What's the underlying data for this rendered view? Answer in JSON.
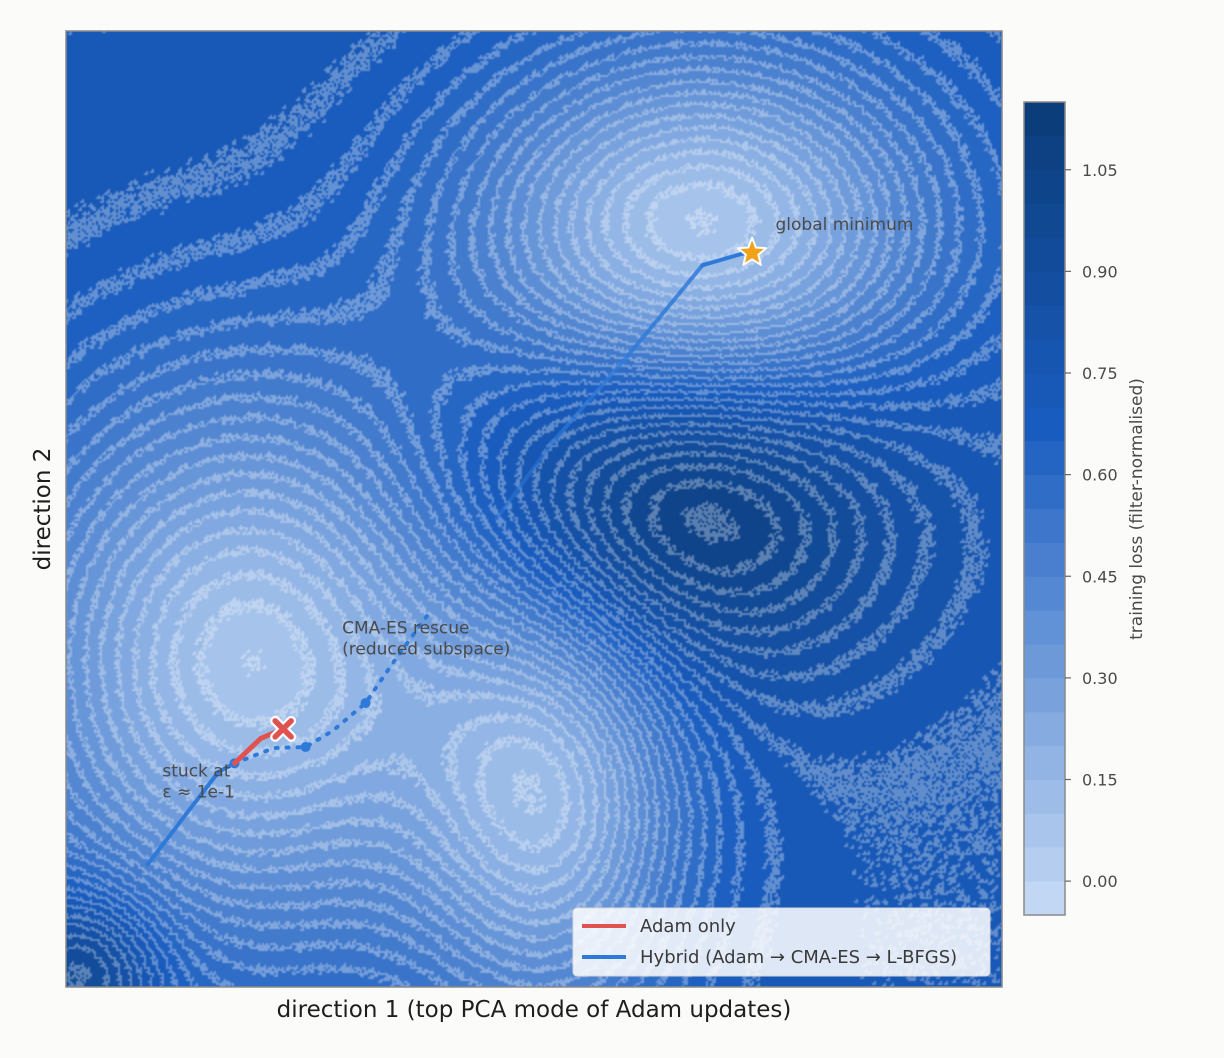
{
  "chart_data": {
    "type": "contour",
    "title": "",
    "xlabel": "direction 1  (top PCA mode of Adam updates)",
    "ylabel": "direction 2",
    "colorbar": {
      "label": "training loss  (filter-normalised)",
      "range": [
        -0.05,
        1.15
      ],
      "ticks": [
        "0.00",
        "0.15",
        "0.30",
        "0.45",
        "0.60",
        "0.75",
        "0.90",
        "1.05"
      ],
      "tick_values": [
        0.0,
        0.15,
        0.3,
        0.45,
        0.6,
        0.75,
        0.9,
        1.05
      ],
      "colormap": [
        "#c8dcf6",
        "#1a5dc0",
        "#0b3c78"
      ]
    },
    "surface": {
      "base_loss": 0.74,
      "basins": [
        {
          "cx": 0.68,
          "cy": 0.79,
          "sx": 0.17,
          "sy": 0.13,
          "depth": -0.68
        },
        {
          "cx": 0.2,
          "cy": 0.34,
          "sx": 0.18,
          "sy": 0.2,
          "depth": -0.66
        },
        {
          "cx": 0.52,
          "cy": 0.19,
          "sx": 0.1,
          "sy": 0.16,
          "depth": -0.52
        },
        {
          "cx": 0.65,
          "cy": 0.5,
          "sx": 0.16,
          "sy": 0.12,
          "depth": 0.4
        },
        {
          "cx": 0.02,
          "cy": 0.02,
          "sx": 0.06,
          "sy": 0.06,
          "depth": 0.3
        }
      ]
    },
    "series": [
      {
        "name": "Adam only",
        "color": "#e05250",
        "path": [
          [
            0.18,
            0.234
          ],
          [
            0.208,
            0.26
          ],
          [
            0.232,
            0.27
          ]
        ]
      },
      {
        "name": "Hybrid (Adam → CMA-ES → L-BFGS)",
        "color": "#2f7ad8",
        "adam_path": [
          [
            0.087,
            0.128
          ],
          [
            0.13,
            0.183
          ],
          [
            0.163,
            0.225
          ],
          [
            0.18,
            0.234
          ]
        ],
        "cmaes_path": [
          [
            0.18,
            0.234
          ],
          [
            0.222,
            0.25
          ],
          [
            0.256,
            0.251
          ],
          [
            0.285,
            0.268
          ],
          [
            0.32,
            0.297
          ],
          [
            0.35,
            0.34
          ],
          [
            0.387,
            0.39
          ]
        ],
        "cmaes_markers": [
          [
            0.18,
            0.234
          ],
          [
            0.256,
            0.251
          ],
          [
            0.32,
            0.297
          ]
        ],
        "lbfgs_path": [
          [
            0.46,
            0.49
          ],
          [
            0.52,
            0.57
          ],
          [
            0.6,
            0.66
          ],
          [
            0.68,
            0.755
          ],
          [
            0.733,
            0.77
          ]
        ]
      }
    ],
    "markers": [
      {
        "name": "stuck point",
        "symbol": "x",
        "x": 0.232,
        "y": 0.27,
        "color": "#e05250"
      },
      {
        "name": "global minimum",
        "symbol": "star",
        "x": 0.733,
        "y": 0.768,
        "color": "#f0a21b"
      }
    ],
    "annotations": [
      {
        "id": "global_min",
        "lines": [
          "global minimum"
        ],
        "x": 0.758,
        "y": 0.792
      },
      {
        "id": "cma_rescue",
        "lines": [
          "CMA-ES rescue",
          "(reduced subspace)"
        ],
        "x": 0.295,
        "y": 0.37
      },
      {
        "id": "stuck",
        "lines": [
          "stuck at",
          "ε ≈ 1e-1"
        ],
        "x": 0.103,
        "y": 0.22
      }
    ],
    "legend": {
      "position": "lower right",
      "entries": [
        {
          "label": "Adam only",
          "color": "#e05250"
        },
        {
          "label": "Hybrid (Adam → CMA-ES → L-BFGS)",
          "color": "#2f7ad8"
        }
      ]
    },
    "grid": false
  }
}
